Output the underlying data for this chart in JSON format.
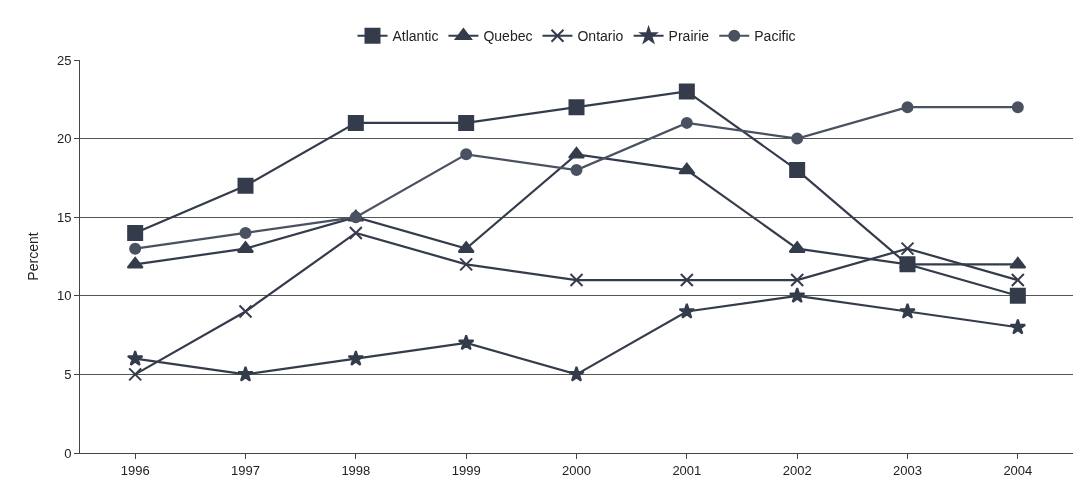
{
  "chart_data": {
    "type": "line",
    "ylabel": "Percent",
    "categories": [
      "1996",
      "1997",
      "1998",
      "1999",
      "2000",
      "2001",
      "2002",
      "2003",
      "2004"
    ],
    "series": [
      {
        "name": "Atlantic",
        "color": "#343c4c",
        "marker": "square",
        "values": [
          14,
          17,
          21,
          21,
          22,
          23,
          18,
          12,
          10
        ]
      },
      {
        "name": "Quebec",
        "color": "#343c4c",
        "marker": "triangle",
        "values": [
          12,
          13,
          15,
          13,
          19,
          18,
          13,
          12,
          12
        ]
      },
      {
        "name": "Ontario",
        "color": "#343c4c",
        "marker": "cross",
        "values": [
          5,
          9,
          14,
          12,
          11,
          11,
          11,
          13,
          11
        ]
      },
      {
        "name": "Prairie",
        "color": "#343c4c",
        "marker": "star",
        "values": [
          6,
          5,
          6,
          7,
          5,
          9,
          10,
          9,
          8
        ]
      },
      {
        "name": "Pacific",
        "color": "#4a5160",
        "marker": "circle",
        "values": [
          13,
          14,
          15,
          19,
          18,
          21,
          20,
          22,
          22
        ]
      }
    ],
    "ylim": [
      0,
      25
    ],
    "yticks": [
      0,
      5,
      10,
      15,
      20,
      25
    ],
    "grid": "y",
    "legend": "top",
    "line_style": "solid"
  }
}
